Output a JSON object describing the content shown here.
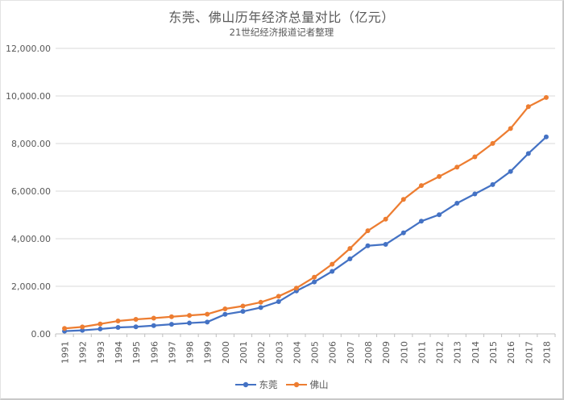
{
  "page": {
    "title": "东莞、佛山历年经济总量对比（亿元）",
    "subtitle": "21世纪经济报道记者整理"
  },
  "chart_data": {
    "type": "line",
    "title": "东莞、佛山历年经济总量对比（亿元）",
    "subtitle": "21世纪经济报道记者整理",
    "categories": [
      "1991",
      "1992",
      "1993",
      "1994",
      "1995",
      "1996",
      "1997",
      "1998",
      "1999",
      "2000",
      "2001",
      "2002",
      "2003",
      "2004",
      "2005",
      "2006",
      "2007",
      "2008",
      "2009",
      "2010",
      "2011",
      "2012",
      "2013",
      "2014",
      "2015",
      "2016",
      "2017",
      "2018"
    ],
    "series": [
      {
        "name": "东莞",
        "color": "#4472C4",
        "values": [
          112.96,
          147.58,
          205.51,
          270.28,
          295.94,
          348.82,
          404.06,
          455.51,
          497.56,
          820.25,
          943.53,
          1105.72,
          1354.61,
          1806.22,
          2182.44,
          2626.51,
          3151.91,
          3702.53,
          3763.26,
          4246.45,
          4735.39,
          5010.14,
          5490.02,
          5881.18,
          6275.06,
          6827.67,
          7582.12,
          8278.59
        ]
      },
      {
        "name": "佛山",
        "color": "#ED7D31",
        "values": [
          228.26,
          291.25,
          416.83,
          540.62,
          610.42,
          662.63,
          722.07,
          774.82,
          827.17,
          1050.38,
          1168.66,
          1328.46,
          1578.58,
          1925.68,
          2383.18,
          2927.61,
          3588.5,
          4333.3,
          4820.88,
          5651.52,
          6231.22,
          6613.0,
          7010.17,
          7441.7,
          8003.92,
          8630.0,
          9549.6,
          9935.88
        ]
      }
    ],
    "xlabel": "",
    "ylabel": "",
    "ylim": [
      0,
      12000
    ],
    "y_tick_step": 2000,
    "y_tick_labels": [
      "0.00",
      "2,000.00",
      "4,000.00",
      "6,000.00",
      "8,000.00",
      "10,000.00",
      "12,000.00"
    ],
    "grid": "horizontal",
    "legend_position": "bottom",
    "colors": {
      "text": "#595959",
      "gridline": "#D9D9D9",
      "axis": "#BFBFBF",
      "background": "#FFFFFF"
    }
  }
}
